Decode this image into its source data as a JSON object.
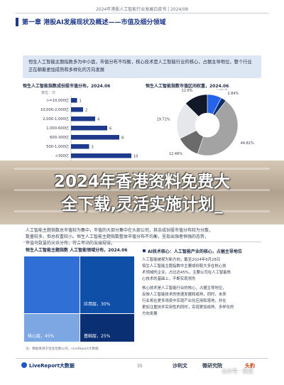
{
  "header": {
    "doc_title": "2024年港股人工智能行业发展白皮书 | 2024/08",
    "chapter_title": "第一章 港股AI发展现状及概述——市值及细分领域"
  },
  "summary": {
    "text": "恒生人工智能主题指数多为中小盘，市值分布不均衡，核心技术是人工智能行业的核心，占据主导地位，整个行业正在朝着更加成熟和多样化的方向发展"
  },
  "left_chart": {
    "title": "恒生人工智能指数成份股市值分布，2024.06",
    "unit": "单位：只",
    "chart_data": {
      "type": "bar",
      "orientation": "horizontal",
      "categories": [
        ">=10,000亿",
        "10,000-2,000亿",
        "2,000-1,000亿",
        "1,000-600亿",
        "600-300亿",
        "500-1,000亿",
        "<300亿"
      ],
      "values": [
        1,
        2,
        4,
        6,
        8,
        3,
        10
      ],
      "value_labels": [
        "1",
        "2",
        "4",
        "6",
        "8",
        "3",
        "10"
      ],
      "color": "#1e3a8a"
    }
  },
  "right_chart": {
    "title": "恒生人工智能指数市值区间权重，2024.06",
    "chart_data": {
      "type": "pie",
      "style": "donut",
      "labels": [
        "7.57%",
        "2.84%",
        "44.81%",
        "12.46%",
        "19.72%",
        "12.6%"
      ],
      "values": [
        7.57,
        2.84,
        44.81,
        12.46,
        19.72,
        12.6
      ],
      "colors": [
        "#2563eb",
        "#0f2f6b",
        "#a3a3a3",
        "#6b6b6b",
        "#e5e7eb",
        "#111827"
      ]
    }
  },
  "overlay": {
    "line1": "2024年香港资料免费大",
    "line2": "全下载,灵活实施计划_"
  },
  "body_text": {
    "line1": "人工智能主题指数总市值较为集中，市值的大部分集中在头部公司，其余成份股市值分布较为分散，",
    "line2": "数量较多，但总权重较小。恒生人工智能主题指数整体市值分布不均衡，呈现出强者恒强的态势，",
    "line3": "市值与数量的关系分布，符合市场的发展规律。"
  },
  "treemap": {
    "title": "恒生人工智能主题指数 人工智能领域分布，2024.06",
    "cells": [
      {
        "label": "",
        "color": "#2f6fd6"
      },
      {
        "label": "应用层，30%",
        "color": "#0f4fa8"
      },
      {
        "label": "核心层，45%",
        "color": "#7da7e3"
      },
      {
        "label": "基础层，25%",
        "color": "#0a2f73"
      }
    ],
    "source": "注：数据来源于恒生指数公司，LiveReport大数据"
  },
  "side": {
    "title": "AI技术核心：人工智能产业的核心，占据主导地位",
    "para1": [
      "人工智能被视为新方向，截至2024年6月28日",
      "恒生人工智能主题指数中主要成份股大多在核心技",
      "术领域的企业，占比达45%，主要公司在人工智能核",
      "心技术的基础上，不断实现领先"
    ],
    "para2": [
      "核心技术是人工智能行业的核心，占据主导地位，",
      "反映人工智能技术的快速发展和成熟，同时，未来",
      "行业将在更多场景中实现产业化应用和落地，并在",
      "更加注重技术实用性的同时，实现更加成熟、多样化的",
      "方向发展"
    ]
  },
  "footer": {
    "logo": "LiveReport大数据",
    "page_number": "35",
    "partner1": "沙利文",
    "partner2": "微研究院",
    "partner3": "头豹",
    "watermark": "公众号 · 侠说"
  }
}
